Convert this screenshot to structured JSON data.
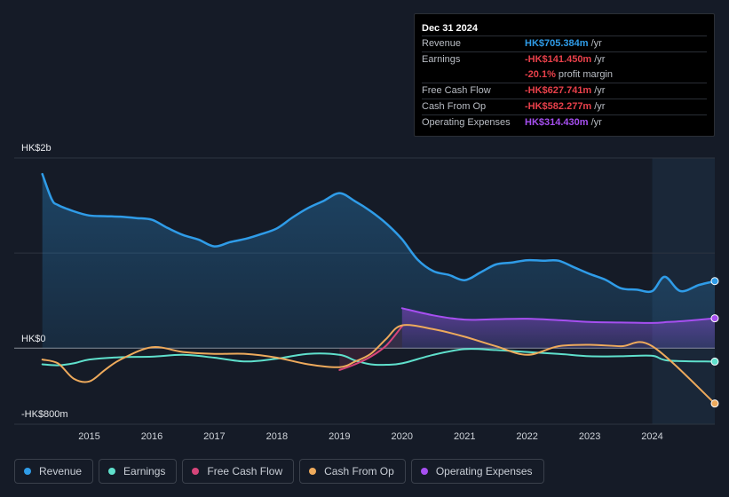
{
  "tooltip": {
    "date": "Dec 31 2024",
    "rows": [
      {
        "label": "Revenue",
        "value": "HK$705.384m",
        "unit": "/yr",
        "color": "#2f9ce8"
      },
      {
        "label": "Earnings",
        "value": "-HK$141.450m",
        "unit": "/yr",
        "color": "#e8404a"
      },
      {
        "label": "",
        "value": "-20.1%",
        "unit": "profit margin",
        "color": "#e8404a"
      },
      {
        "label": "Free Cash Flow",
        "value": "-HK$627.741m",
        "unit": "/yr",
        "color": "#e8404a"
      },
      {
        "label": "Cash From Op",
        "value": "-HK$582.277m",
        "unit": "/yr",
        "color": "#e8404a"
      },
      {
        "label": "Operating Expenses",
        "value": "HK$314.430m",
        "unit": "/yr",
        "color": "#a64ff0"
      }
    ]
  },
  "legend": [
    {
      "label": "Revenue",
      "color": "#2f9ce8"
    },
    {
      "label": "Earnings",
      "color": "#5fe0cc"
    },
    {
      "label": "Free Cash Flow",
      "color": "#d6457a"
    },
    {
      "label": "Cash From Op",
      "color": "#eeaa5c"
    },
    {
      "label": "Operating Expenses",
      "color": "#a64ff0"
    }
  ],
  "colors": {
    "background": "#151b27",
    "revenue": "#2f9ce8",
    "earnings": "#5fe0cc",
    "fcf": "#d6457a",
    "cfo": "#eeaa5c",
    "opex": "#a64ff0"
  },
  "chart_data": {
    "type": "line",
    "title": "",
    "ylabel": "",
    "xlabel": "",
    "y_tick_labels": [
      "HK$2b",
      "HK$0",
      "-HK$800m"
    ],
    "ylim": [
      -800,
      2000
    ],
    "y_units": "HK$m",
    "x_ticks": [
      {
        "label": "2015",
        "x": 2015.0
      },
      {
        "label": "2016",
        "x": 2016.0
      },
      {
        "label": "2017",
        "x": 2017.0
      },
      {
        "label": "2018",
        "x": 2018.0
      },
      {
        "label": "2019",
        "x": 2019.0
      },
      {
        "label": "2020",
        "x": 2020.0
      },
      {
        "label": "2021",
        "x": 2021.0
      },
      {
        "label": "2022",
        "x": 2022.0
      },
      {
        "label": "2023",
        "x": 2023.0
      },
      {
        "label": "2024",
        "x": 2024.0
      }
    ],
    "xlim": [
      2013.8,
      2025.0
    ],
    "highlight_start": 2024.0,
    "series": [
      {
        "name": "Revenue",
        "key": "revenue",
        "fill": true,
        "points": [
          [
            2014.25,
            1830
          ],
          [
            2014.4,
            1565
          ],
          [
            2014.5,
            1505
          ],
          [
            2014.75,
            1440
          ],
          [
            2015.0,
            1395
          ],
          [
            2015.25,
            1388
          ],
          [
            2015.5,
            1383
          ],
          [
            2015.75,
            1368
          ],
          [
            2016.0,
            1350
          ],
          [
            2016.25,
            1265
          ],
          [
            2016.5,
            1190
          ],
          [
            2016.75,
            1140
          ],
          [
            2017.0,
            1070
          ],
          [
            2017.25,
            1115
          ],
          [
            2017.5,
            1150
          ],
          [
            2017.75,
            1200
          ],
          [
            2018.0,
            1260
          ],
          [
            2018.25,
            1375
          ],
          [
            2018.5,
            1475
          ],
          [
            2018.75,
            1550
          ],
          [
            2019.0,
            1630
          ],
          [
            2019.25,
            1545
          ],
          [
            2019.5,
            1440
          ],
          [
            2019.75,
            1310
          ],
          [
            2020.0,
            1145
          ],
          [
            2020.25,
            930
          ],
          [
            2020.5,
            810
          ],
          [
            2020.75,
            770
          ],
          [
            2021.0,
            715
          ],
          [
            2021.25,
            795
          ],
          [
            2021.5,
            880
          ],
          [
            2021.75,
            900
          ],
          [
            2022.0,
            925
          ],
          [
            2022.25,
            920
          ],
          [
            2022.5,
            920
          ],
          [
            2022.75,
            850
          ],
          [
            2023.0,
            780
          ],
          [
            2023.25,
            720
          ],
          [
            2023.5,
            630
          ],
          [
            2023.75,
            615
          ],
          [
            2024.0,
            600
          ],
          [
            2024.2,
            750
          ],
          [
            2024.45,
            600
          ],
          [
            2024.75,
            665
          ],
          [
            2025.0,
            705
          ]
        ]
      },
      {
        "name": "Earnings",
        "key": "earnings",
        "fill": false,
        "points": [
          [
            2014.25,
            -170
          ],
          [
            2014.5,
            -180
          ],
          [
            2014.75,
            -160
          ],
          [
            2015.0,
            -120
          ],
          [
            2015.5,
            -95
          ],
          [
            2016.0,
            -90
          ],
          [
            2016.5,
            -70
          ],
          [
            2017.0,
            -100
          ],
          [
            2017.5,
            -140
          ],
          [
            2018.0,
            -110
          ],
          [
            2018.5,
            -60
          ],
          [
            2019.0,
            -70
          ],
          [
            2019.25,
            -130
          ],
          [
            2019.5,
            -170
          ],
          [
            2019.75,
            -175
          ],
          [
            2020.0,
            -160
          ],
          [
            2020.5,
            -70
          ],
          [
            2021.0,
            -10
          ],
          [
            2021.5,
            -20
          ],
          [
            2022.0,
            -40
          ],
          [
            2022.5,
            -60
          ],
          [
            2023.0,
            -85
          ],
          [
            2023.5,
            -85
          ],
          [
            2024.0,
            -80
          ],
          [
            2024.25,
            -130
          ],
          [
            2025.0,
            -141
          ]
        ]
      },
      {
        "name": "Free Cash Flow",
        "key": "fcf",
        "fill": false,
        "points": [
          [
            2019.0,
            -230
          ],
          [
            2019.25,
            -170
          ],
          [
            2019.5,
            -90
          ],
          [
            2019.75,
            30
          ],
          [
            2020.0,
            230
          ]
        ]
      },
      {
        "name": "Cash From Op",
        "key": "cfo",
        "fill": false,
        "points": [
          [
            2014.25,
            -120
          ],
          [
            2014.5,
            -160
          ],
          [
            2014.75,
            -320
          ],
          [
            2015.0,
            -350
          ],
          [
            2015.25,
            -230
          ],
          [
            2015.5,
            -120
          ],
          [
            2016.0,
            10
          ],
          [
            2016.5,
            -40
          ],
          [
            2017.0,
            -60
          ],
          [
            2017.5,
            -60
          ],
          [
            2018.0,
            -100
          ],
          [
            2018.5,
            -170
          ],
          [
            2019.0,
            -200
          ],
          [
            2019.25,
            -140
          ],
          [
            2019.5,
            -60
          ],
          [
            2019.75,
            100
          ],
          [
            2020.0,
            240
          ],
          [
            2020.5,
            200
          ],
          [
            2021.0,
            120
          ],
          [
            2021.5,
            20
          ],
          [
            2022.0,
            -70
          ],
          [
            2022.5,
            20
          ],
          [
            2023.0,
            35
          ],
          [
            2023.5,
            20
          ],
          [
            2024.0,
            20
          ],
          [
            2025.0,
            -582
          ]
        ]
      },
      {
        "name": "Operating Expenses",
        "key": "opex",
        "fill": true,
        "points": [
          [
            2020.0,
            420
          ],
          [
            2020.5,
            345
          ],
          [
            2021.0,
            300
          ],
          [
            2021.5,
            305
          ],
          [
            2022.0,
            310
          ],
          [
            2022.5,
            295
          ],
          [
            2023.0,
            275
          ],
          [
            2023.5,
            270
          ],
          [
            2024.0,
            265
          ],
          [
            2024.25,
            275
          ],
          [
            2024.5,
            285
          ],
          [
            2025.0,
            314
          ]
        ]
      }
    ]
  }
}
